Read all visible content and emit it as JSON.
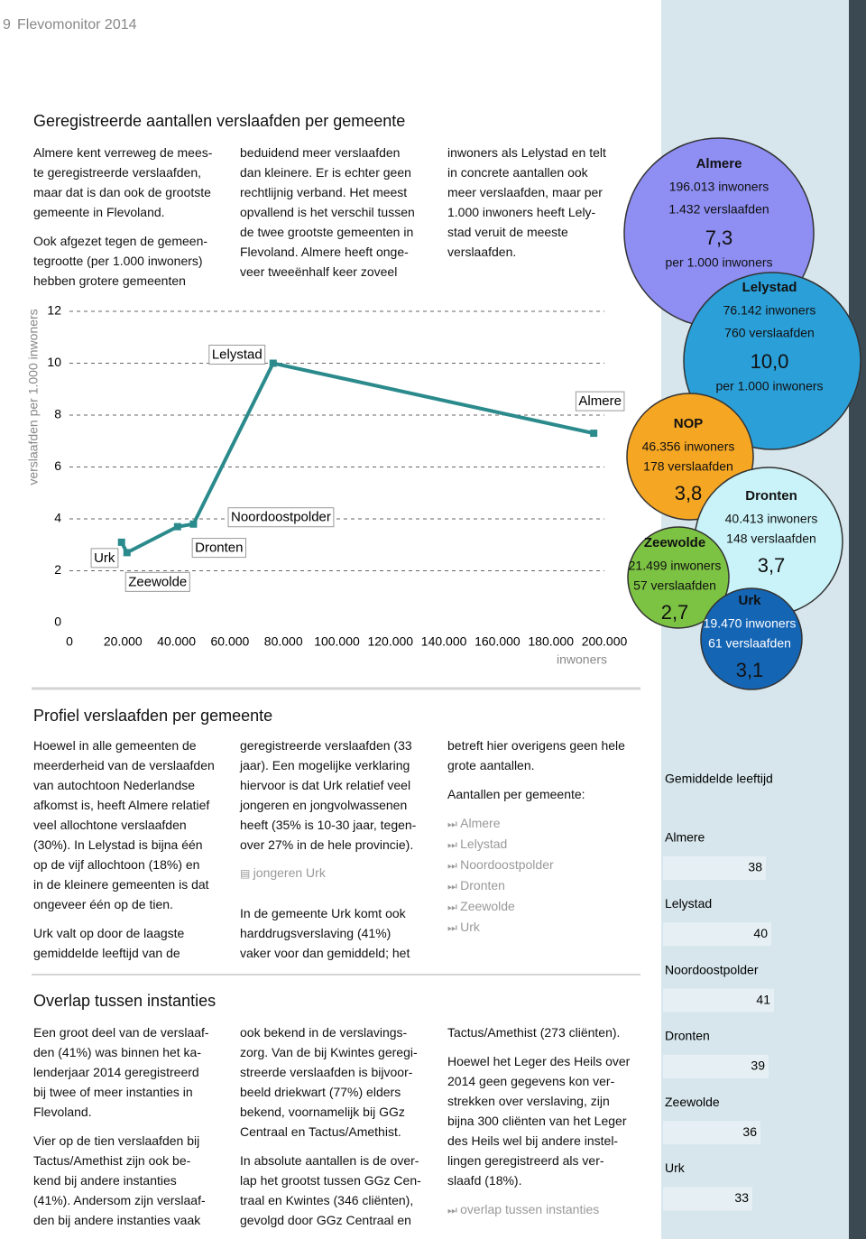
{
  "header": {
    "page_number": "9",
    "title": "Flevomonitor 2014"
  },
  "sections": [
    {
      "title": "Geregistreerde aantallen verslaafden per gemeente",
      "columns": [
        [
          {
            "lines": [
              "Almere kent verreweg de mees-",
              "te geregistreerde verslaafden,",
              "maar dat is dan ook de grootste",
              "gemeente in Flevoland."
            ]
          },
          {
            "lines": [
              "Ook afgezet tegen de gemeen-",
              "tegrootte (per 1.000 inwoners)",
              "hebben grotere gemeenten"
            ]
          }
        ],
        [
          {
            "lines": [
              "beduidend meer verslaafden",
              "dan kleinere. Er is echter geen",
              "rechtlijnig verband. Het meest",
              "opvallend is het  verschil tussen",
              "de twee grootste gemeenten in",
              "Flevoland. Almere heeft onge-",
              "veer tweeënhalf keer zoveel"
            ]
          }
        ],
        [
          {
            "lines": [
              "inwoners als Lelystad en telt",
              "in concrete aantallen ook",
              "meer verslaafden, maar per",
              "1.000 inwoners heeft Lely-",
              "stad veruit de meeste",
              "verslaafden."
            ]
          }
        ]
      ]
    },
    {
      "title": "Profiel verslaafden per gemeente",
      "columns": [
        [
          {
            "lines": [
              "Hoewel in alle gemeenten de",
              "meerderheid van de verslaafden",
              "van autochtoon Nederlandse",
              "afkomst is, heeft Almere relatief",
              "veel allochtone verslaafden",
              "(30%). In Lelystad is bijna één",
              "op de vijf allochtoon (18%) en",
              "in de kleinere gemeenten is dat",
              "ongeveer één op de tien."
            ]
          },
          {
            "lines": [
              "Urk valt op door de laagste",
              "gemiddelde leeftijd van de"
            ]
          }
        ],
        [
          {
            "lines": [
              "geregistreerde verslaafden (33",
              "jaar). Een mogelijke verklaring",
              "hiervoor is dat Urk relatief veel",
              "jongeren en jongvolwassenen",
              "heeft (35% is 10-30 jaar, tegen-",
              "over 27% in de hele provincie)."
            ]
          },
          {
            "document_link": "jongeren Urk"
          },
          {
            "lines": [
              "In de gemeente Urk komt ook",
              "harddrugsverslaving (41%)",
              "vaker voor dan gemiddeld; het"
            ]
          }
        ],
        [
          {
            "lines": [
              "betreft hier overigens geen hele",
              "grote aantallen."
            ]
          },
          {
            "lines": [
              "Aantallen per gemeente:"
            ]
          },
          {
            "links": [
              "Almere",
              "Lelystad",
              "Noordoostpolder",
              "Dronten",
              "Zeewolde",
              "Urk"
            ]
          }
        ]
      ]
    },
    {
      "title": "Overlap tussen instanties",
      "columns": [
        [
          {
            "lines": [
              "Een groot deel van de verslaaf-",
              "den (41%) was binnen het ka-",
              "lenderjaar 2014 geregistreerd",
              "bij twee of meer instanties in",
              "Flevoland."
            ]
          },
          {
            "lines": [
              "Vier op de tien verslaafden bij",
              "Tactus/Amethist zijn ook be-",
              "kend bij andere instanties",
              "(41%). Andersom zijn verslaaf-",
              "den bij andere instanties vaak"
            ]
          }
        ],
        [
          {
            "lines": [
              "ook bekend in de verslavings-",
              "zorg. Van de bij Kwintes geregi-",
              "streerde verslaafden is bijvoor-",
              "beeld driekwart (77%) elders",
              "bekend, voornamelijk bij GGz",
              "Centraal en Tactus/Amethist."
            ]
          },
          {
            "lines": [
              "In absolute aantallen is de over-",
              "lap het grootst tussen GGz Cen-",
              "traal en Kwintes (346 cliënten),",
              "gevolgd door GGz Centraal en"
            ]
          }
        ],
        [
          {
            "lines": [
              "Tactus/Amethist (273 cliënten)."
            ]
          },
          {
            "lines": [
              "Hoewel het Leger des Heils over",
              "2014 geen gegevens kon  ver-",
              "strekken over verslaving, zijn",
              "bijna 300 cliënten van het Leger",
              "des Heils wel bij andere instel-",
              "lingen geregistreerd als ver-",
              "slaafd (18%)."
            ]
          },
          {
            "links": [
              "overlap tussen instanties"
            ]
          }
        ]
      ]
    }
  ],
  "chart_data": [
    {
      "type": "line",
      "y_label": "verslaafden per 1.000 inwoners",
      "x_label": "inwoners",
      "color": "#2b8a8c",
      "grid": true,
      "x": [
        19470,
        21499,
        40413,
        46356,
        76142,
        196013
      ],
      "values": [
        3.1,
        2.7,
        3.7,
        3.8,
        10.0,
        7.3
      ],
      "point_labels": [
        "Urk",
        "Zeewolde",
        "Dronten",
        "Noordoostpolder",
        "Lelystad",
        "Almere"
      ],
      "xlim": [
        0,
        200000
      ],
      "xticks": [
        0,
        {
          "value": 20000,
          "label": "20.000"
        },
        {
          "value": 40000,
          "label": "40.000"
        },
        {
          "value": 60000,
          "label": "60.000"
        },
        {
          "value": 80000,
          "label": "80.000"
        },
        {
          "value": 100000,
          "label": "100.000"
        },
        {
          "value": 120000,
          "label": "120.000"
        },
        {
          "value": 140000,
          "label": "140.000"
        },
        {
          "value": 160000,
          "label": "160.000"
        },
        {
          "value": 180000,
          "label": "180.000"
        },
        {
          "value": 200000,
          "label": "200.000"
        }
      ],
      "ylim": [
        0,
        12
      ],
      "yticks": [
        0,
        2,
        4,
        6,
        8,
        10,
        12
      ]
    },
    {
      "type": "hbar",
      "title": "Gemiddelde leeftijd",
      "color": "#e6f0f4",
      "categories": [
        "Almere",
        "Lelystad",
        "Noordoostpolder",
        "Dronten",
        "Zeewolde",
        "Urk"
      ],
      "values": [
        38,
        40,
        41,
        39,
        36,
        33
      ]
    }
  ],
  "bubbles": [
    {
      "name": "Almere",
      "inwoners": "196.013 inwoners",
      "verslaafden": "1.432 verslaafden",
      "ratio": "7,3",
      "unit": "per 1.000 inwoners",
      "color": "#8e8ef3"
    },
    {
      "name": "Lelystad",
      "inwoners": "76.142 inwoners",
      "verslaafden": "760 verslaafden",
      "ratio": "10,0",
      "unit": "per 1.000 inwoners",
      "color": "#2b9fd8"
    },
    {
      "name": "NOP",
      "inwoners": "46.356 inwoners",
      "verslaafden": "178 verslaafden",
      "ratio": "3,8",
      "color": "#f5a623"
    },
    {
      "name": "Dronten",
      "inwoners": "40.413 inwoners",
      "verslaafden": "148 verslaafden",
      "ratio": "3,7",
      "color": "#c9f3f8"
    },
    {
      "name": "Zeewolde",
      "inwoners": "21.499 inwoners",
      "verslaafden": "57 verslaafden",
      "ratio": "2,7",
      "color": "#7cc243"
    },
    {
      "name": "Urk",
      "inwoners": "19.470 inwoners",
      "verslaafden": "61 verslaafden",
      "ratio": "3,1",
      "color": "#1565b5"
    }
  ]
}
